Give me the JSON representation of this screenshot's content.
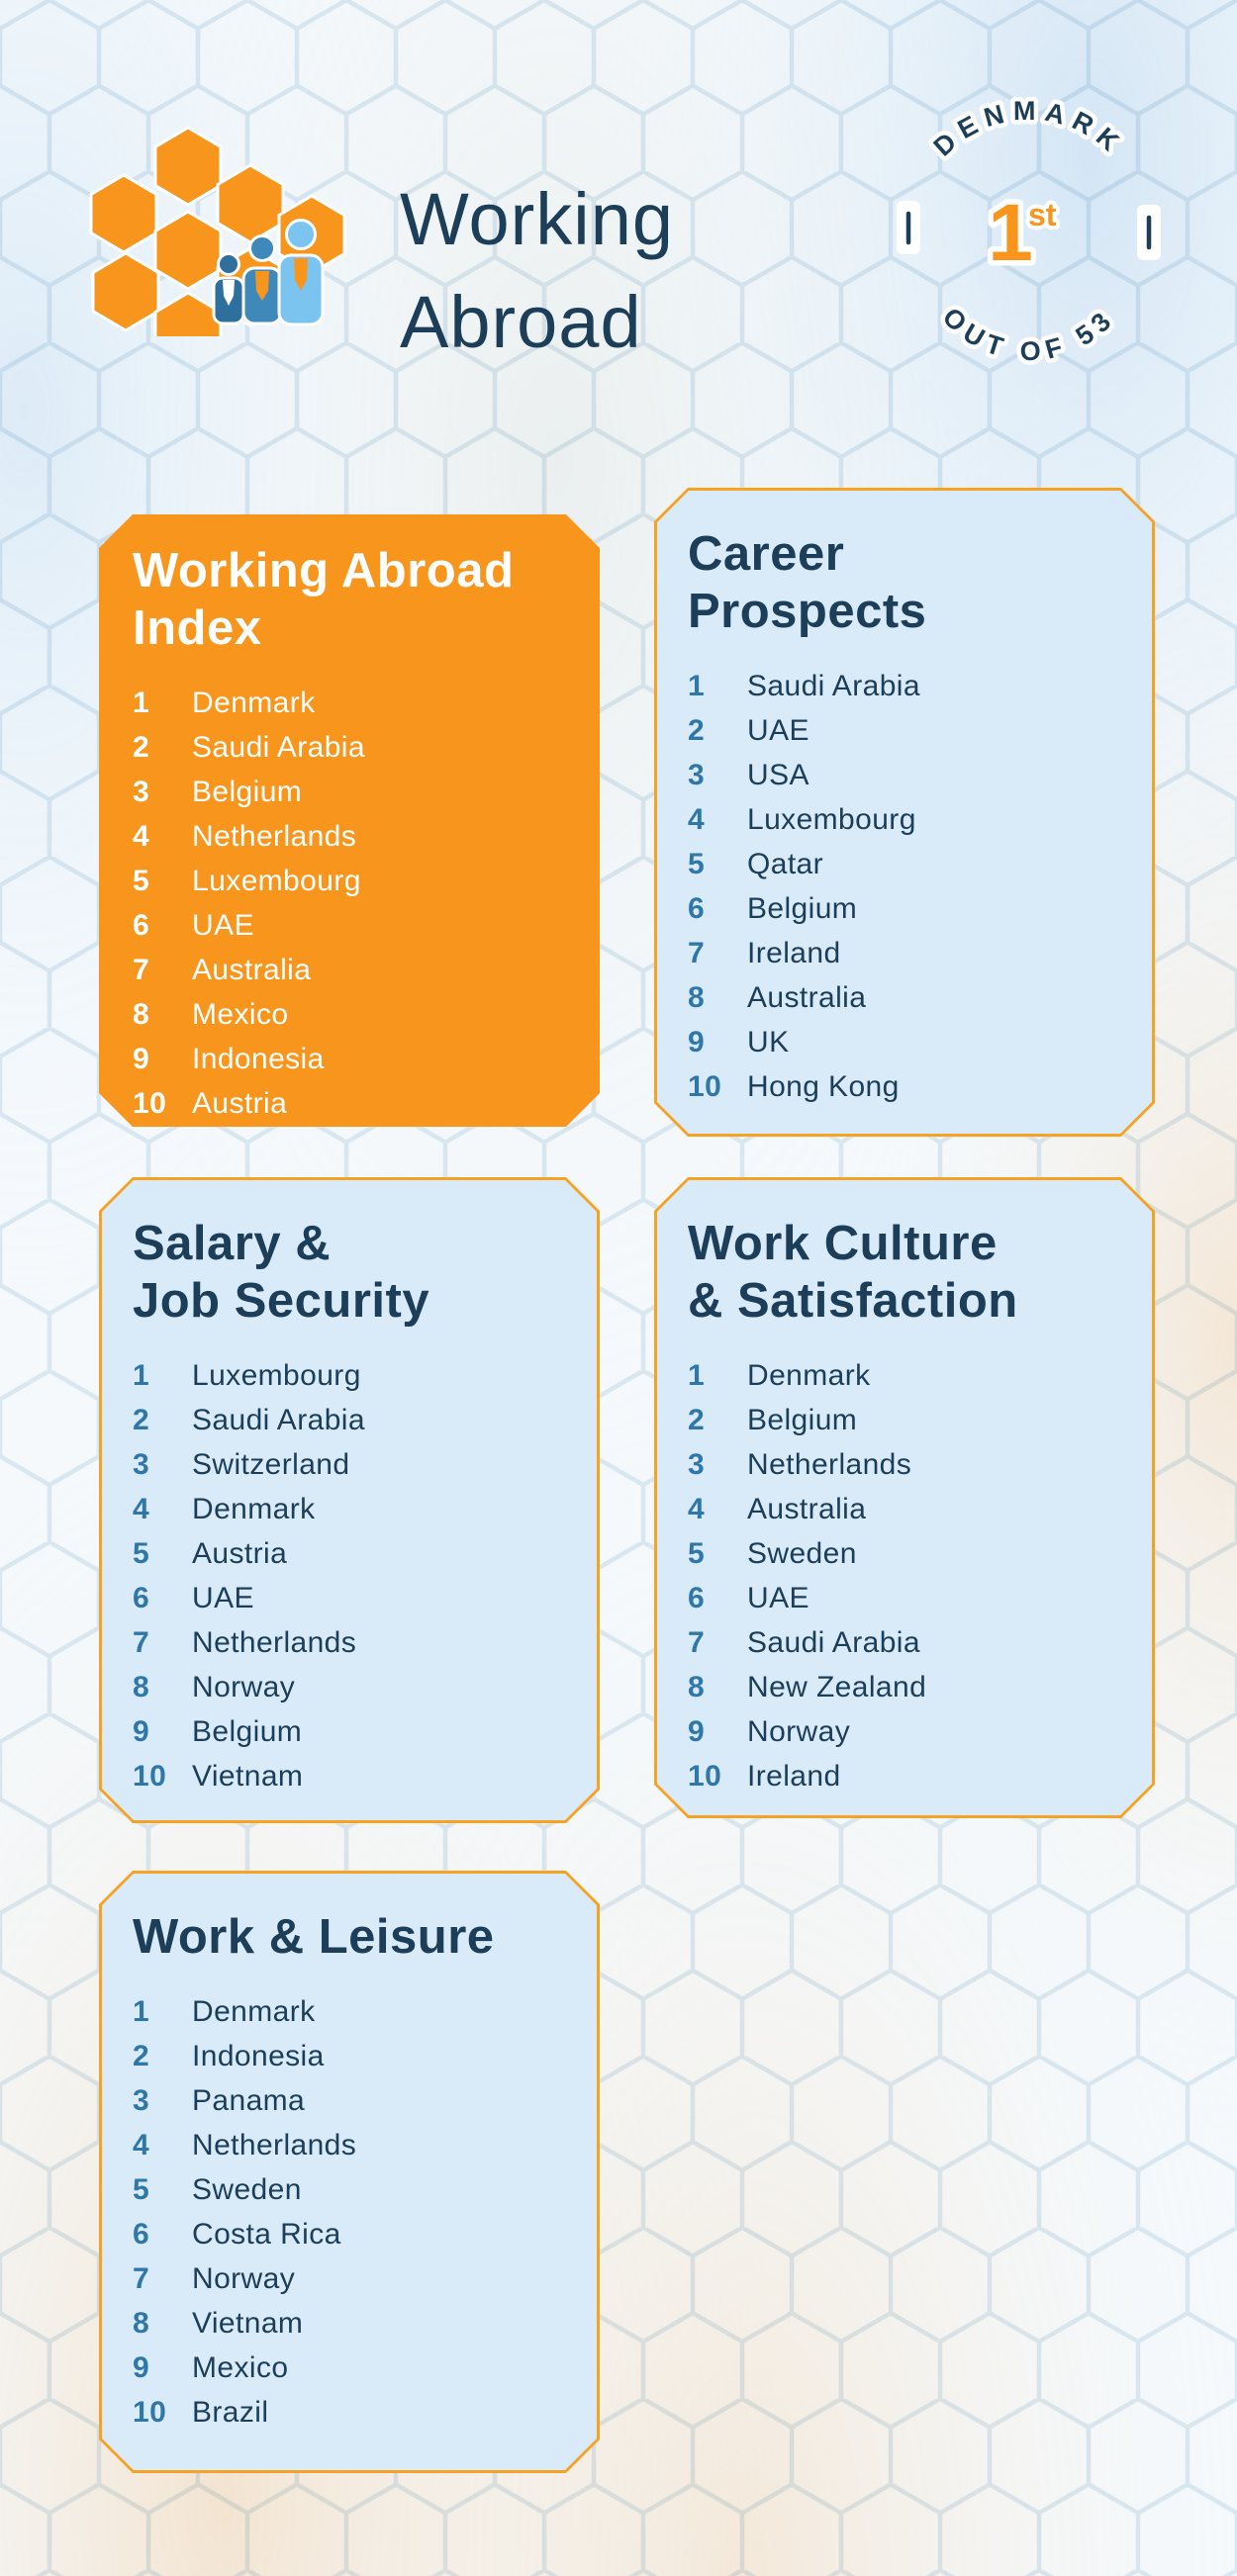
{
  "header": {
    "title_line1": "Working",
    "title_line2": "Abroad",
    "logo_icon": "honeycomb-people-logo"
  },
  "badge": {
    "top_text": "DENMARK",
    "bottom_text": "OUT OF 53",
    "rank_number": "1",
    "rank_suffix": "st"
  },
  "colors": {
    "orange": "#F8951D",
    "navy": "#1C3E59",
    "rank_blue": "#3077A9",
    "card_blue_fill": "#D9EAF8",
    "card_border_orange": "#F6A223",
    "background": "#F5F9FC"
  },
  "cards": [
    {
      "id": "working-abroad-index",
      "theme": "orange",
      "title_line1": "Working Abroad",
      "title_line2": "Index",
      "items": [
        {
          "rank": "1",
          "country": "Denmark"
        },
        {
          "rank": "2",
          "country": "Saudi Arabia"
        },
        {
          "rank": "3",
          "country": "Belgium"
        },
        {
          "rank": "4",
          "country": "Netherlands"
        },
        {
          "rank": "5",
          "country": "Luxembourg"
        },
        {
          "rank": "6",
          "country": "UAE"
        },
        {
          "rank": "7",
          "country": "Australia"
        },
        {
          "rank": "8",
          "country": "Mexico"
        },
        {
          "rank": "9",
          "country": "Indonesia"
        },
        {
          "rank": "10",
          "country": "Austria"
        }
      ]
    },
    {
      "id": "career-prospects",
      "theme": "blue",
      "title_line1": "Career",
      "title_line2": "Prospects",
      "items": [
        {
          "rank": "1",
          "country": "Saudi Arabia"
        },
        {
          "rank": "2",
          "country": "UAE"
        },
        {
          "rank": "3",
          "country": "USA"
        },
        {
          "rank": "4",
          "country": "Luxembourg"
        },
        {
          "rank": "5",
          "country": "Qatar"
        },
        {
          "rank": "6",
          "country": "Belgium"
        },
        {
          "rank": "7",
          "country": "Ireland"
        },
        {
          "rank": "8",
          "country": "Australia"
        },
        {
          "rank": "9",
          "country": "UK"
        },
        {
          "rank": "10",
          "country": "Hong Kong"
        }
      ]
    },
    {
      "id": "salary-job-security",
      "theme": "blue",
      "title_line1": "Salary &",
      "title_line2": "Job Security",
      "items": [
        {
          "rank": "1",
          "country": "Luxembourg"
        },
        {
          "rank": "2",
          "country": "Saudi Arabia"
        },
        {
          "rank": "3",
          "country": "Switzerland"
        },
        {
          "rank": "4",
          "country": "Denmark"
        },
        {
          "rank": "5",
          "country": "Austria"
        },
        {
          "rank": "6",
          "country": "UAE"
        },
        {
          "rank": "7",
          "country": "Netherlands"
        },
        {
          "rank": "8",
          "country": "Norway"
        },
        {
          "rank": "9",
          "country": "Belgium"
        },
        {
          "rank": "10",
          "country": "Vietnam"
        }
      ]
    },
    {
      "id": "work-culture-satisfaction",
      "theme": "blue",
      "title_line1": "Work Culture",
      "title_line2": "& Satisfaction",
      "items": [
        {
          "rank": "1",
          "country": "Denmark"
        },
        {
          "rank": "2",
          "country": "Belgium"
        },
        {
          "rank": "3",
          "country": "Netherlands"
        },
        {
          "rank": "4",
          "country": "Australia"
        },
        {
          "rank": "5",
          "country": "Sweden"
        },
        {
          "rank": "6",
          "country": "UAE"
        },
        {
          "rank": "7",
          "country": "Saudi Arabia"
        },
        {
          "rank": "8",
          "country": "New Zealand"
        },
        {
          "rank": "9",
          "country": "Norway"
        },
        {
          "rank": "10",
          "country": "Ireland"
        }
      ]
    },
    {
      "id": "work-leisure",
      "theme": "blue",
      "title_line1": "Work & Leisure",
      "title_line2": "",
      "items": [
        {
          "rank": "1",
          "country": "Denmark"
        },
        {
          "rank": "2",
          "country": "Indonesia"
        },
        {
          "rank": "3",
          "country": "Panama"
        },
        {
          "rank": "4",
          "country": "Netherlands"
        },
        {
          "rank": "5",
          "country": "Sweden"
        },
        {
          "rank": "6",
          "country": "Costa Rica"
        },
        {
          "rank": "7",
          "country": "Norway"
        },
        {
          "rank": "8",
          "country": "Vietnam"
        },
        {
          "rank": "9",
          "country": "Mexico"
        },
        {
          "rank": "10",
          "country": "Brazil"
        }
      ]
    }
  ]
}
